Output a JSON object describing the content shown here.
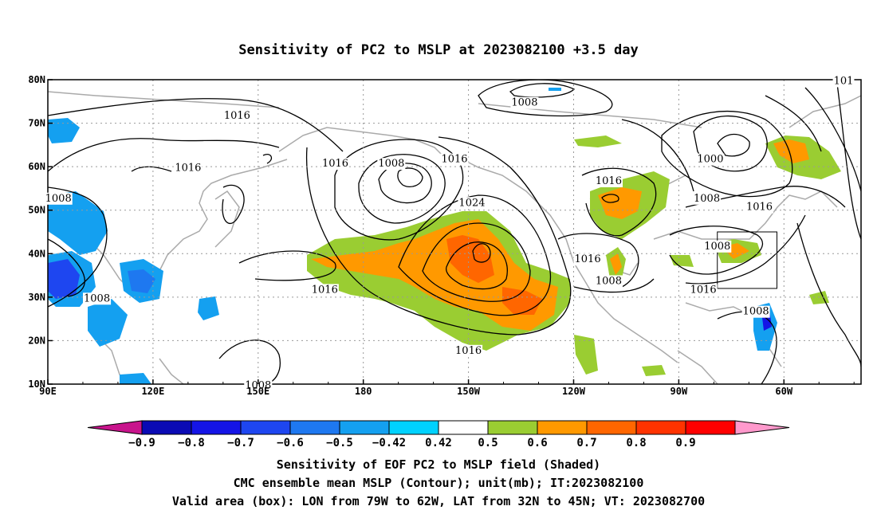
{
  "title": "Sensitivity of PC2 to MSLP at 2023082100 +3.5 day",
  "x_ticks": [
    "90E",
    "120E",
    "150E",
    "180",
    "150W",
    "120W",
    "90W",
    "60W"
  ],
  "y_ticks": [
    "10N",
    "20N",
    "30N",
    "40N",
    "50N",
    "60N",
    "70N",
    "80N"
  ],
  "map_extent": {
    "lon_min": 90,
    "lon_max": 322,
    "lat_min": 10,
    "lat_max": 80
  },
  "colorbar": {
    "labels": [
      "-0.9",
      "-0.8",
      "-0.7",
      "-0.6",
      "-0.5",
      "-0.42",
      "0.42",
      "0.5",
      "0.6",
      "0.7",
      "0.8",
      "0.9"
    ],
    "colors": [
      "#c8148c",
      "#0a0ab4",
      "#1414e6",
      "#1e46f0",
      "#1e78f0",
      "#14a0f0",
      "#00d2ff",
      "#ffffff",
      "#9acd32",
      "#ff9900",
      "#ff6600",
      "#ff3300",
      "#ff0000",
      "#ff99cc"
    ]
  },
  "valid_box": {
    "lon_min": 281,
    "lon_max": 298,
    "lat_min": 32,
    "lat_max": 45
  },
  "contour_labels": [
    {
      "text": "1016",
      "lon": 144,
      "lat": 71
    },
    {
      "text": "1016",
      "lon": 130,
      "lat": 59
    },
    {
      "text": "1008",
      "lon": 93,
      "lat": 52
    },
    {
      "text": "1008",
      "lon": 104,
      "lat": 29
    },
    {
      "text": "1016",
      "lon": 169,
      "lat": 31
    },
    {
      "text": "1008",
      "lon": 150,
      "lat": 9
    },
    {
      "text": "1016",
      "lon": 172,
      "lat": 60
    },
    {
      "text": "1008",
      "lon": 188,
      "lat": 60
    },
    {
      "text": "1016",
      "lon": 206,
      "lat": 61
    },
    {
      "text": "1024",
      "lon": 211,
      "lat": 51
    },
    {
      "text": "1016",
      "lon": 210,
      "lat": 17
    },
    {
      "text": "1008",
      "lon": 226,
      "lat": 74
    },
    {
      "text": "1016",
      "lon": 250,
      "lat": 56
    },
    {
      "text": "1016",
      "lon": 244,
      "lat": 38
    },
    {
      "text": "1008",
      "lon": 250,
      "lat": 33
    },
    {
      "text": "1000",
      "lon": 279,
      "lat": 61
    },
    {
      "text": "1008",
      "lon": 278,
      "lat": 52
    },
    {
      "text": "1016",
      "lon": 293,
      "lat": 50
    },
    {
      "text": "1008",
      "lon": 281,
      "lat": 41
    },
    {
      "text": "1016",
      "lon": 277,
      "lat": 31
    },
    {
      "text": "1008",
      "lon": 292,
      "lat": 26
    },
    {
      "text": "101",
      "lon": 317,
      "lat": 79
    }
  ],
  "captions": {
    "line1": "Sensitivity of EOF PC2 to MSLP field (Shaded)",
    "line2": "CMC ensemble mean MSLP (Contour); unit(mb); IT:2023082100",
    "line3": "Valid area (box): LON from 79W to 62W, LAT from 32N to 45N; VT: 2023082700"
  }
}
